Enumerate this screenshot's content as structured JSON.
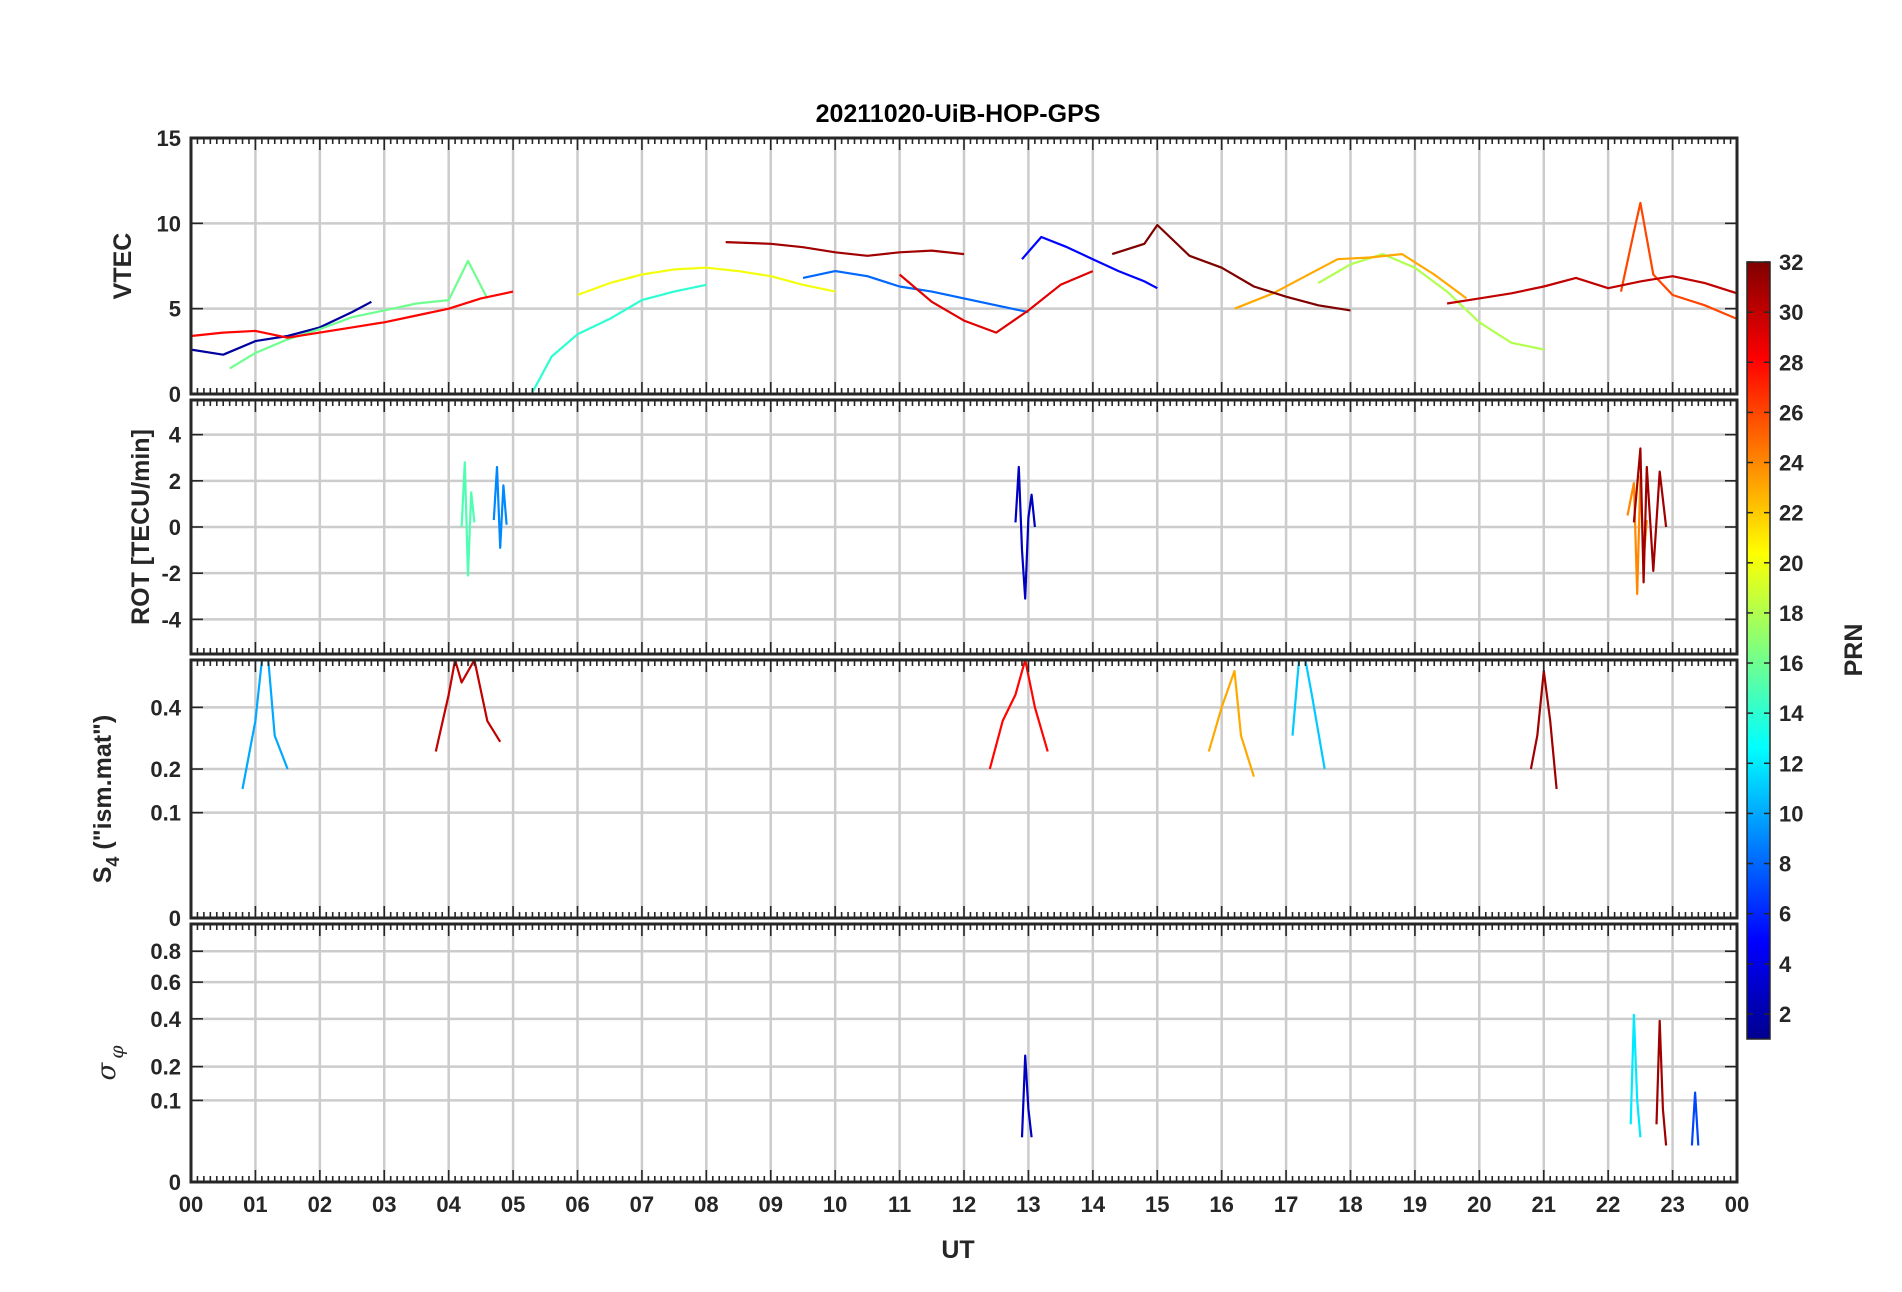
{
  "chart_data": {
    "title": "20211020-UiB-HOP-GPS",
    "xlabel": "UT",
    "x_ticks": [
      "00",
      "01",
      "02",
      "03",
      "04",
      "05",
      "06",
      "07",
      "08",
      "09",
      "10",
      "11",
      "12",
      "13",
      "14",
      "15",
      "16",
      "17",
      "18",
      "19",
      "20",
      "21",
      "22",
      "23",
      "00"
    ],
    "x_range_hours": [
      0,
      24
    ],
    "colorbar": {
      "label": "PRN",
      "range": [
        1,
        32
      ],
      "ticks": [
        "2",
        "4",
        "6",
        "8",
        "10",
        "12",
        "14",
        "16",
        "18",
        "20",
        "22",
        "24",
        "26",
        "28",
        "30",
        "32"
      ],
      "colormap": "jet"
    },
    "panels": [
      {
        "type": "line",
        "ylabel": "VTEC",
        "ylim": [
          0,
          15
        ],
        "y_ticks": [
          "0",
          "5",
          "10",
          "15"
        ],
        "series": [
          {
            "name": "PRN 2",
            "prn": 2,
            "x": [
              0.0,
              0.5,
              1.0,
              1.5,
              2.0,
              2.5,
              2.8
            ],
            "values": [
              2.6,
              2.3,
              3.1,
              3.4,
              3.9,
              4.8,
              5.4
            ]
          },
          {
            "name": "PRN 5",
            "prn": 5,
            "x": [
              12.9,
              13.2,
              13.6,
              14.0,
              14.4,
              14.8,
              15.0
            ],
            "values": [
              7.9,
              9.2,
              8.6,
              7.9,
              7.2,
              6.6,
              6.2
            ]
          },
          {
            "name": "PRN 8",
            "prn": 8,
            "x": [
              9.5,
              10.0,
              10.5,
              11.0,
              11.5,
              12.0,
              12.5,
              13.0
            ],
            "values": [
              6.8,
              7.2,
              6.9,
              6.3,
              6.0,
              5.6,
              5.2,
              4.8
            ]
          },
          {
            "name": "PRN 14",
            "prn": 14,
            "x": [
              5.3,
              5.6,
              6.0,
              6.5,
              7.0,
              7.5,
              8.0
            ],
            "values": [
              0.1,
              2.2,
              3.5,
              4.4,
              5.5,
              6.0,
              6.4
            ]
          },
          {
            "name": "PRN 16",
            "prn": 16,
            "x": [
              0.6,
              1.0,
              1.5,
              2.0,
              2.5,
              3.0,
              3.5,
              4.0,
              4.3,
              4.6
            ],
            "values": [
              1.5,
              2.4,
              3.2,
              3.8,
              4.5,
              4.9,
              5.3,
              5.5,
              7.8,
              5.6
            ]
          },
          {
            "name": "PRN 18",
            "prn": 18,
            "x": [
              17.5,
              18.0,
              18.5,
              19.0,
              19.5,
              20.0,
              20.5,
              21.0
            ],
            "values": [
              6.5,
              7.6,
              8.2,
              7.4,
              6.0,
              4.2,
              3.0,
              2.6
            ]
          },
          {
            "name": "PRN 20",
            "prn": 20,
            "x": [
              6.0,
              6.5,
              7.0,
              7.5,
              8.0,
              8.5,
              9.0,
              9.5,
              10.0
            ],
            "values": [
              5.8,
              6.5,
              7.0,
              7.3,
              7.4,
              7.2,
              6.9,
              6.4,
              6.0
            ]
          },
          {
            "name": "PRN 23",
            "prn": 23,
            "x": [
              16.2,
              16.8,
              17.3,
              17.8,
              18.3,
              18.8,
              19.3,
              19.8
            ],
            "values": [
              5.0,
              5.9,
              6.9,
              7.9,
              8.0,
              8.2,
              7.0,
              5.6
            ]
          },
          {
            "name": "PRN 26",
            "prn": 26,
            "x": [
              22.2,
              22.4,
              22.5,
              22.7,
              23.0,
              23.5,
              24.0
            ],
            "values": [
              6.0,
              9.5,
              11.2,
              7.0,
              5.8,
              5.2,
              4.4
            ]
          },
          {
            "name": "PRN 28",
            "prn": 28,
            "x": [
              0.0,
              0.5,
              1.0,
              1.5,
              2.0,
              2.5,
              3.0,
              3.5,
              4.0,
              4.5,
              5.0
            ],
            "values": [
              3.4,
              3.6,
              3.7,
              3.3,
              3.6,
              3.9,
              4.2,
              4.6,
              5.0,
              5.6,
              6.0
            ]
          },
          {
            "name": "PRN 29",
            "prn": 29,
            "x": [
              11.0,
              11.5,
              12.0,
              12.5,
              13.0,
              13.5,
              14.0
            ],
            "values": [
              7.0,
              5.4,
              4.3,
              3.6,
              4.9,
              6.4,
              7.2
            ]
          },
          {
            "name": "PRN 31",
            "prn": 31,
            "x": [
              8.3,
              9.0,
              9.5,
              10.0,
              10.5,
              11.0,
              11.5,
              12.0
            ],
            "values": [
              8.9,
              8.8,
              8.6,
              8.3,
              8.1,
              8.3,
              8.4,
              8.2
            ]
          },
          {
            "name": "PRN 32",
            "prn": 32,
            "x": [
              14.3,
              14.8,
              15.0,
              15.5,
              16.0,
              16.5,
              17.0,
              17.5,
              18.0
            ],
            "values": [
              8.2,
              8.8,
              9.9,
              8.1,
              7.4,
              6.3,
              5.7,
              5.2,
              4.9
            ]
          },
          {
            "name": "PRN 30",
            "prn": 30,
            "x": [
              19.5,
              20.0,
              20.5,
              21.0,
              21.5,
              22.0,
              22.5,
              23.0,
              23.5,
              24.0
            ],
            "values": [
              5.3,
              5.6,
              5.9,
              6.3,
              6.8,
              6.2,
              6.6,
              6.9,
              6.5,
              5.9
            ]
          }
        ]
      },
      {
        "type": "line",
        "ylabel": "ROT [TECU/min]",
        "ylim": [
          -5.5,
          5.5
        ],
        "y_ticks": [
          "-4",
          "-2",
          "0",
          "2",
          "4"
        ],
        "series": [
          {
            "name": "PRN 3",
            "prn": 3,
            "x": [
              12.8,
              12.85,
              12.9,
              12.95,
              13.0,
              13.05,
              13.1
            ],
            "values": [
              0.2,
              2.6,
              -1.0,
              -3.1,
              0.4,
              1.4,
              0.0
            ]
          },
          {
            "name": "PRN 9",
            "prn": 9,
            "x": [
              4.7,
              4.75,
              4.8,
              4.85,
              4.9
            ],
            "values": [
              0.3,
              2.6,
              -0.9,
              1.8,
              0.1
            ]
          },
          {
            "name": "PRN 15",
            "prn": 15,
            "x": [
              4.2,
              4.25,
              4.3,
              4.35,
              4.4
            ],
            "values": [
              0.0,
              2.8,
              -2.1,
              1.5,
              0.2
            ]
          },
          {
            "name": "PRN 24",
            "prn": 24,
            "x": [
              22.3,
              22.4,
              22.45,
              22.5,
              22.55,
              22.6
            ],
            "values": [
              0.5,
              1.9,
              -2.9,
              2.2,
              -1.4,
              0.3
            ]
          },
          {
            "name": "PRN 31",
            "prn": 31,
            "x": [
              22.4,
              22.5,
              22.55,
              22.6,
              22.7,
              22.8,
              22.9
            ],
            "values": [
              0.2,
              3.4,
              -2.4,
              2.6,
              -1.9,
              2.4,
              0.0
            ]
          }
        ]
      },
      {
        "type": "line",
        "ylabel": "S4 (\"ism.mat\")",
        "ylabel_main": "S",
        "ylabel_sub": "4",
        "ylabel_rest": " (\"ism.mat\")",
        "scale": "sqrt",
        "ylim": [
          0,
          0.6
        ],
        "y_ticks": [
          "0",
          "0.1",
          "0.2",
          "0.4"
        ],
        "series": [
          {
            "name": "PRN 10",
            "prn": 10,
            "x": [
              0.8,
              1.0,
              1.1,
              1.2,
              1.3,
              1.5
            ],
            "values": [
              0.15,
              0.35,
              0.6,
              0.6,
              0.3,
              0.2
            ]
          },
          {
            "name": "PRN 30",
            "prn": 30,
            "x": [
              3.8,
              4.0,
              4.1,
              4.2,
              4.4,
              4.6,
              4.8
            ],
            "values": [
              0.25,
              0.45,
              0.6,
              0.5,
              0.6,
              0.35,
              0.28
            ]
          },
          {
            "name": "PRN 28",
            "prn": 28,
            "x": [
              12.4,
              12.6,
              12.8,
              12.95,
              13.1,
              13.3
            ],
            "values": [
              0.2,
              0.35,
              0.45,
              0.6,
              0.4,
              0.25
            ]
          },
          {
            "name": "PRN 11",
            "prn": 11,
            "x": [
              17.1,
              17.2,
              17.3,
              17.4,
              17.6
            ],
            "values": [
              0.3,
              0.6,
              0.6,
              0.45,
              0.2
            ]
          },
          {
            "name": "PRN 23",
            "prn": 23,
            "x": [
              15.8,
              16.0,
              16.2,
              16.3,
              16.5
            ],
            "values": [
              0.25,
              0.4,
              0.55,
              0.3,
              0.18
            ]
          },
          {
            "name": "PRN 31",
            "prn": 31,
            "x": [
              20.8,
              20.9,
              21.0,
              21.1,
              21.2
            ],
            "values": [
              0.2,
              0.3,
              0.55,
              0.35,
              0.15
            ]
          }
        ]
      },
      {
        "type": "line",
        "ylabel": "σφ",
        "ylabel_main": "σ",
        "ylabel_sub": "φ",
        "scale": "sqrt",
        "ylim": [
          0,
          1.0
        ],
        "y_ticks": [
          "0",
          "0.1",
          "0.2",
          "0.4",
          "0.6",
          "0.8"
        ],
        "series": [
          {
            "name": "PRN 3",
            "prn": 3,
            "x": [
              12.9,
              12.95,
              13.0,
              13.05
            ],
            "values": [
              0.03,
              0.24,
              0.08,
              0.03
            ]
          },
          {
            "name": "PRN 12",
            "prn": 12,
            "x": [
              22.35,
              22.4,
              22.45,
              22.5
            ],
            "values": [
              0.05,
              0.42,
              0.1,
              0.03
            ]
          },
          {
            "name": "PRN 31",
            "prn": 31,
            "x": [
              22.75,
              22.8,
              22.85,
              22.9
            ],
            "values": [
              0.05,
              0.39,
              0.08,
              0.02
            ]
          },
          {
            "name": "PRN 7",
            "prn": 7,
            "x": [
              23.3,
              23.35,
              23.4
            ],
            "values": [
              0.02,
              0.12,
              0.02
            ]
          }
        ]
      }
    ]
  }
}
